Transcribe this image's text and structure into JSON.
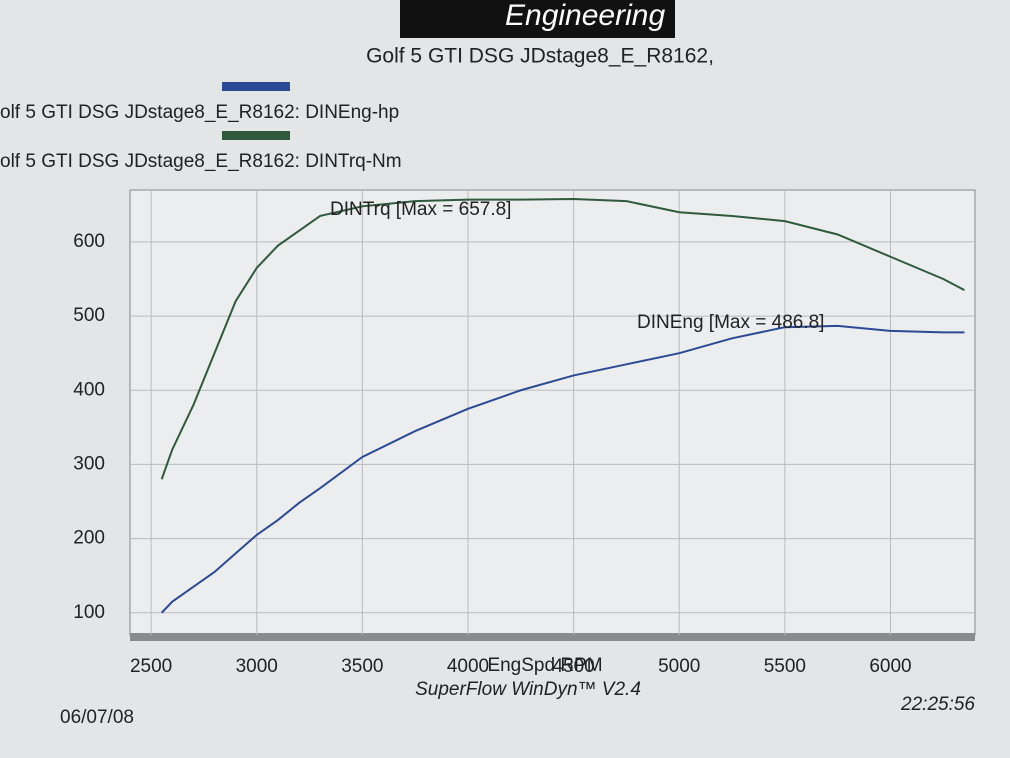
{
  "logo": "Engineering",
  "chart_data": {
    "type": "line",
    "title": "Golf 5 GTI DSG JDstage8_E_R8162,",
    "x_label": "EngSpd  RPM",
    "x": [
      2550,
      2600,
      2700,
      2800,
      2900,
      3000,
      3100,
      3200,
      3300,
      3500,
      3750,
      4000,
      4250,
      4500,
      4750,
      5000,
      5250,
      5500,
      5750,
      6000,
      6250,
      6350
    ],
    "series": [
      {
        "name": "olf 5 GTI DSG JDstage8_E_R8162: DINEng-hp",
        "color": "#2b4a96",
        "values": [
          100,
          115,
          135,
          155,
          180,
          205,
          225,
          248,
          268,
          310,
          345,
          375,
          400,
          420,
          435,
          450,
          470,
          485,
          486.8,
          480,
          478,
          478
        ]
      },
      {
        "name": "olf 5 GTI DSG JDstage8_E_R8162: DINTrq-Nm",
        "color": "#2f5a3c",
        "values": [
          280,
          320,
          380,
          450,
          520,
          565,
          595,
          615,
          635,
          648,
          655,
          657,
          657,
          657.8,
          655,
          640,
          635,
          628,
          610,
          580,
          550,
          535
        ]
      }
    ],
    "annotations": [
      "DINEng [Max = 486.8]",
      "DINTrq [Max = 657.8]"
    ],
    "xlim": [
      2400,
      6400
    ],
    "xticks": [
      2500,
      3000,
      3500,
      4000,
      4500,
      5000,
      5500,
      6000
    ],
    "ylim": [
      70,
      670
    ],
    "yticks": [
      100,
      200,
      300,
      400,
      500,
      600
    ],
    "grid": true,
    "footer": {
      "left": "06/07/08",
      "center": "SuperFlow WinDyn™ V2.4",
      "right": "22:25:56"
    }
  }
}
